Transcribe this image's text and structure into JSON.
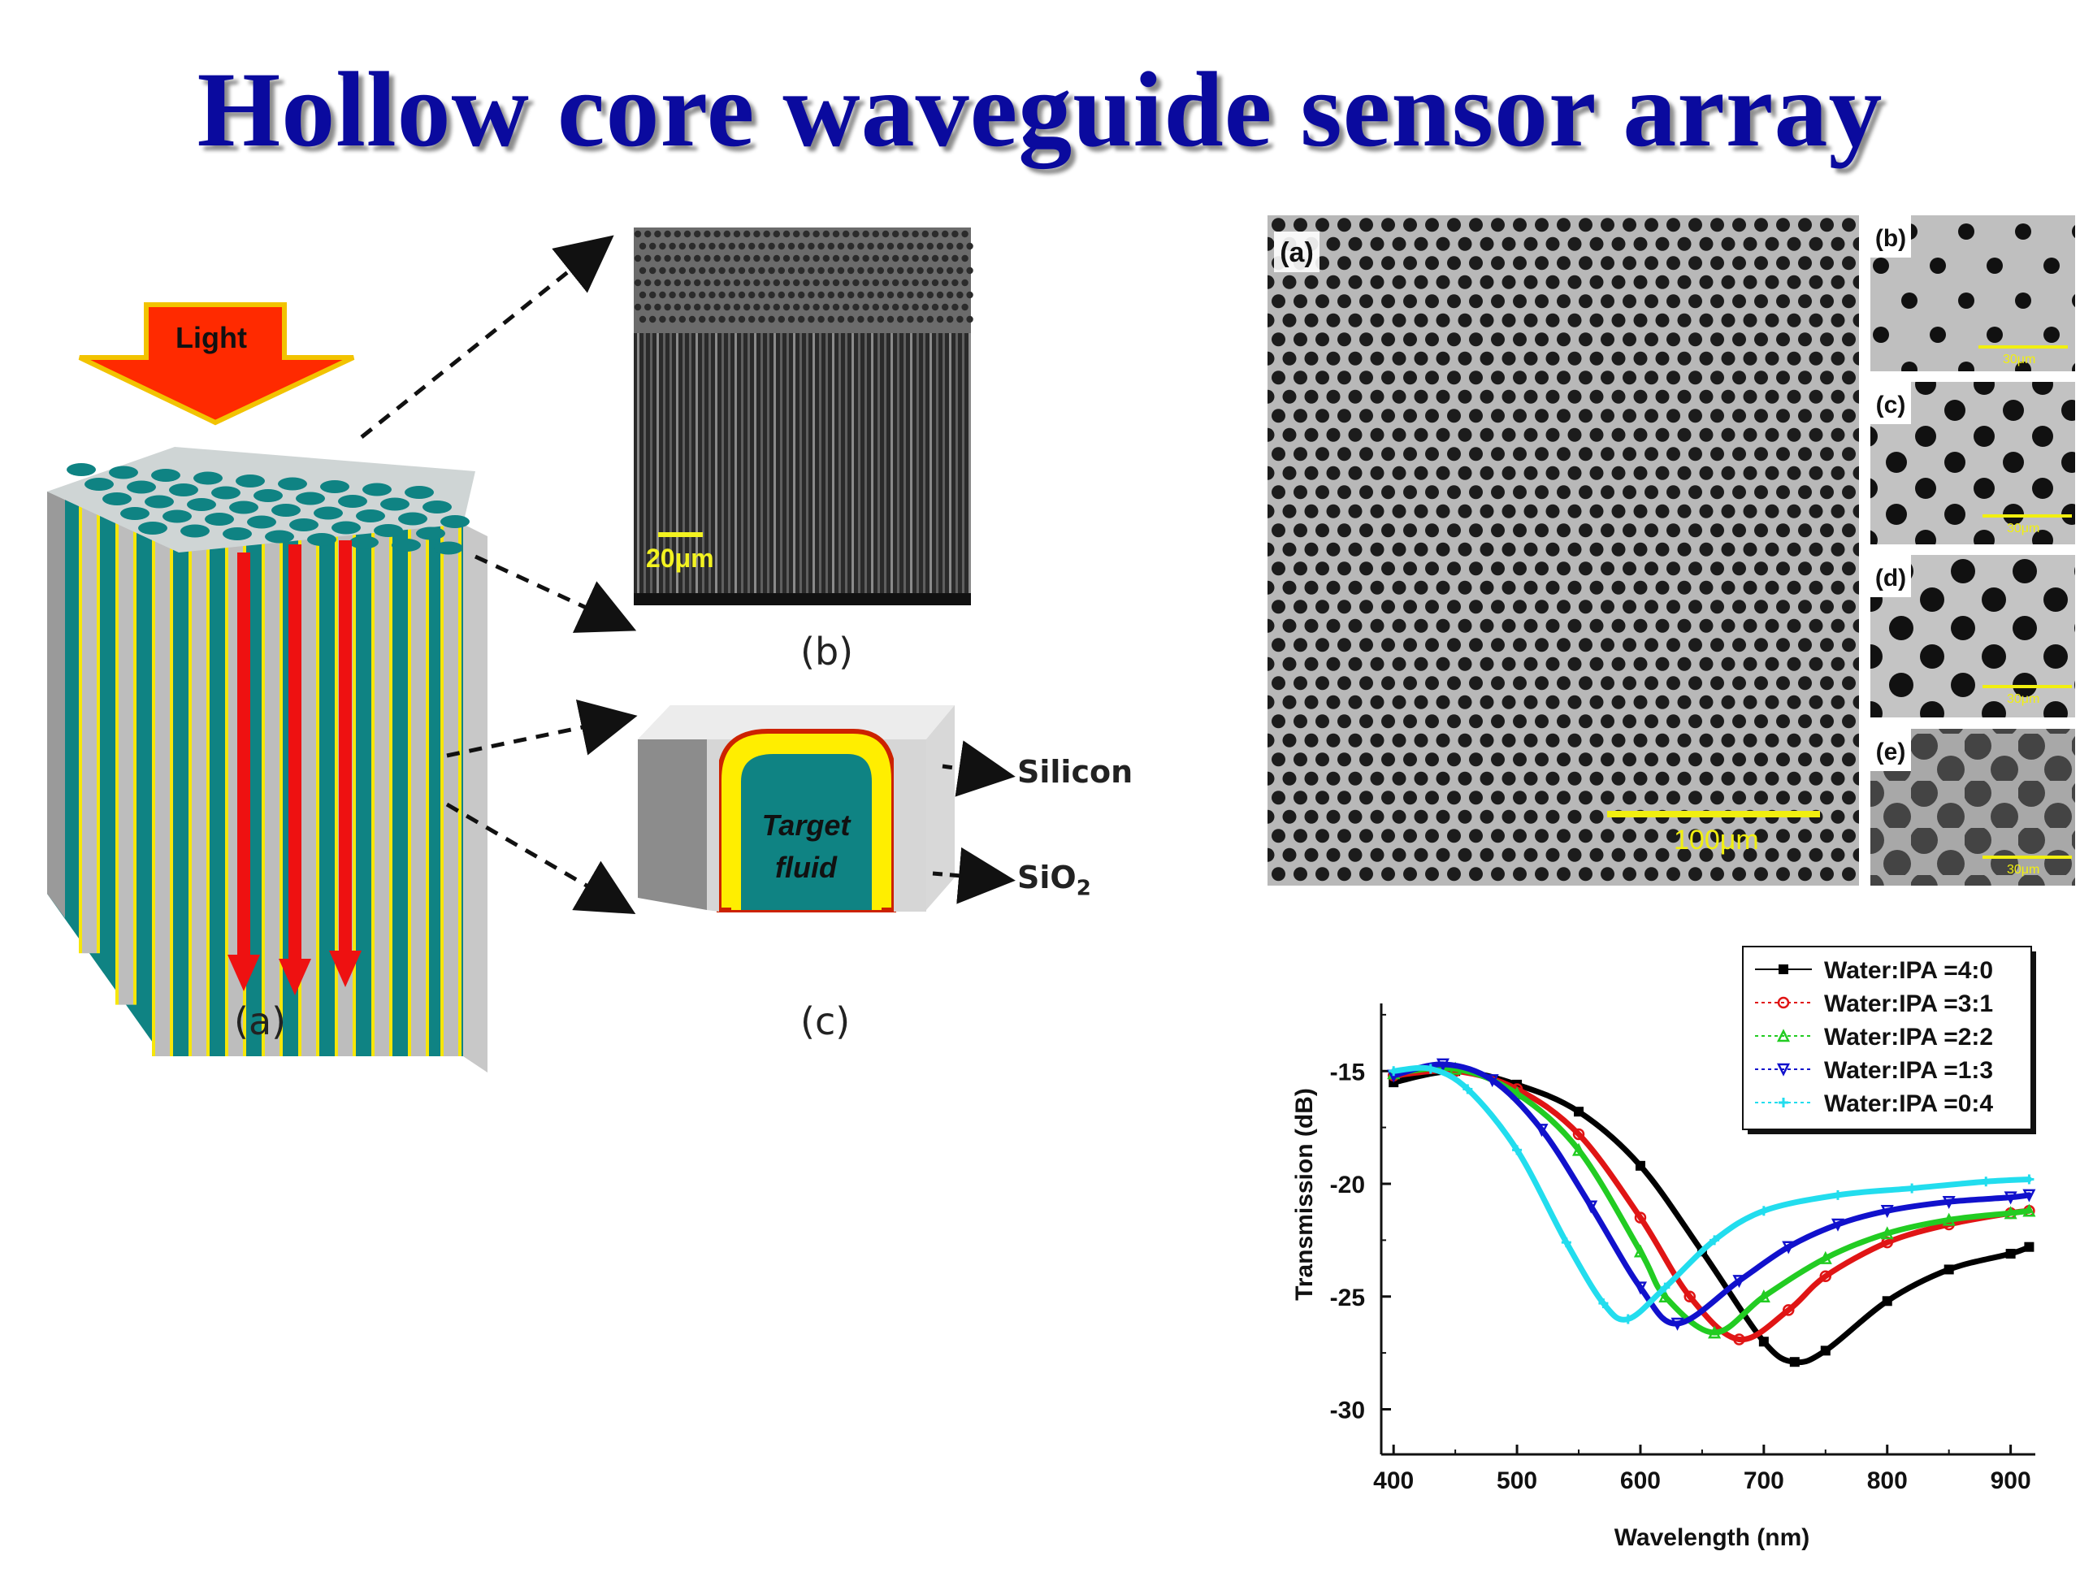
{
  "title": "Hollow core waveguide sensor array",
  "left_figure": {
    "light_label": "Light",
    "sem_scale_bar": "20μm",
    "fluid_label_line1": "Target",
    "fluid_label_line2": "fluid",
    "silicon_label": "Silicon",
    "sio2_label_main": "SiO",
    "sio2_label_sub": "2",
    "caption_a": "(a)",
    "caption_b": "(b)",
    "caption_c": "(c)",
    "colors": {
      "teal": "#0e8585",
      "yellow": "#f6e60a",
      "red_arrow": "#ee1111",
      "light_arrow": "#ff2200"
    }
  },
  "sem_panels": {
    "main": {
      "label": "(a)",
      "scale_bar": "100μm"
    },
    "small": [
      {
        "label": "(b)",
        "scale_bar": "30μm"
      },
      {
        "label": "(c)",
        "scale_bar": "30μm"
      },
      {
        "label": "(d)",
        "scale_bar": "30μm"
      },
      {
        "label": "(e)",
        "scale_bar": "30μm"
      }
    ]
  },
  "chart_data": {
    "type": "line",
    "title": "",
    "xlabel": "Wavelength (nm)",
    "ylabel": "Transmission (dB)",
    "xlim": [
      390,
      920
    ],
    "ylim": [
      -32,
      -12
    ],
    "xticks": [
      400,
      500,
      600,
      700,
      800,
      900
    ],
    "yticks": [
      -30,
      -25,
      -20,
      -15
    ],
    "grid": false,
    "legend_position": "top-right",
    "series": [
      {
        "name": "Water:IPA =4:0",
        "color": "#000000",
        "marker": "square",
        "x": [
          400,
          450,
          500,
          550,
          600,
          650,
          700,
          725,
          750,
          800,
          850,
          900,
          915
        ],
        "y": [
          -15.5,
          -15.0,
          -15.6,
          -16.8,
          -19.2,
          -23.0,
          -27.0,
          -27.9,
          -27.4,
          -25.2,
          -23.8,
          -23.1,
          -22.8
        ]
      },
      {
        "name": "Water:IPA =3:1",
        "color": "#e01515",
        "marker": "circle",
        "x": [
          400,
          450,
          500,
          550,
          600,
          640,
          680,
          720,
          750,
          800,
          850,
          900,
          915
        ],
        "y": [
          -15.2,
          -15.0,
          -15.8,
          -17.8,
          -21.5,
          -25.0,
          -26.9,
          -25.6,
          -24.1,
          -22.6,
          -21.8,
          -21.3,
          -21.2
        ]
      },
      {
        "name": "Water:IPA =2:2",
        "color": "#22cc22",
        "marker": "triangle-up",
        "x": [
          400,
          450,
          500,
          550,
          600,
          620,
          660,
          700,
          750,
          800,
          850,
          900,
          915
        ],
        "y": [
          -15.1,
          -14.9,
          -16.0,
          -18.5,
          -23.0,
          -25.0,
          -26.6,
          -25.0,
          -23.3,
          -22.2,
          -21.6,
          -21.3,
          -21.2
        ]
      },
      {
        "name": "Water:IPA =1:3",
        "color": "#1111cc",
        "marker": "triangle-down",
        "x": [
          400,
          440,
          480,
          520,
          560,
          600,
          630,
          680,
          720,
          760,
          800,
          850,
          900,
          915
        ],
        "y": [
          -15.2,
          -14.7,
          -15.4,
          -17.6,
          -21.0,
          -24.6,
          -26.2,
          -24.3,
          -22.8,
          -21.8,
          -21.2,
          -20.8,
          -20.6,
          -20.5
        ]
      },
      {
        "name": "Water:IPA =0:4",
        "color": "#22ddee",
        "marker": "cross",
        "x": [
          400,
          430,
          460,
          500,
          540,
          570,
          590,
          620,
          660,
          700,
          760,
          820,
          880,
          915
        ],
        "y": [
          -15.0,
          -14.9,
          -15.8,
          -18.5,
          -22.6,
          -25.3,
          -26.0,
          -24.6,
          -22.5,
          -21.2,
          -20.5,
          -20.2,
          -19.9,
          -19.8
        ]
      }
    ]
  }
}
